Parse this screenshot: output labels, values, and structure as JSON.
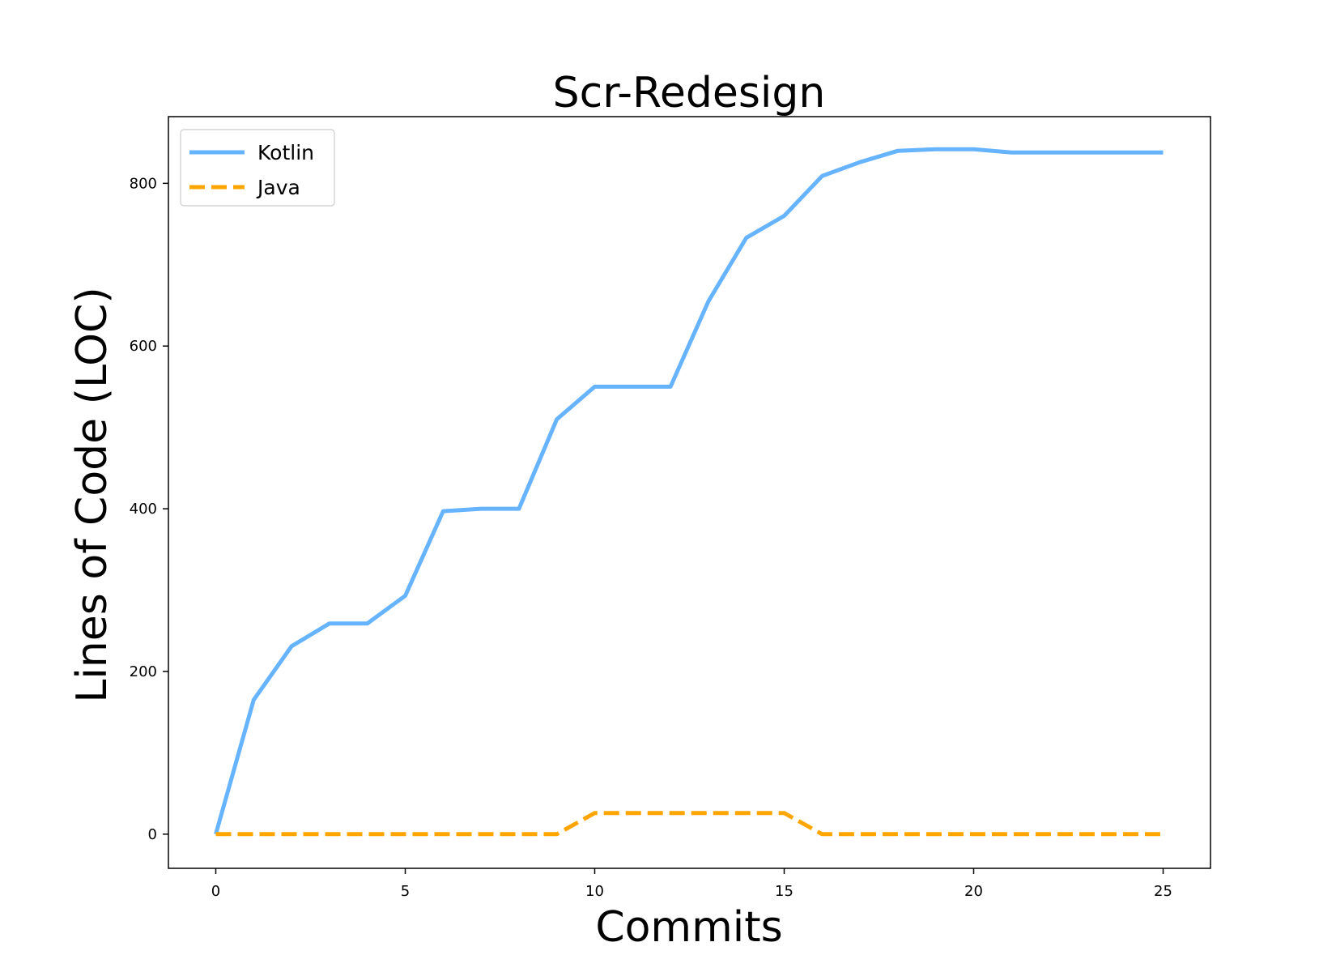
{
  "chart_data": {
    "type": "line",
    "title": "Scr-Redesign",
    "xlabel": "Commits",
    "ylabel": "Lines of Code (LOC)",
    "xlim": [
      -1.25,
      26.25
    ],
    "ylim": [
      -42,
      882
    ],
    "xticks": [
      0,
      5,
      10,
      15,
      20,
      25
    ],
    "yticks": [
      0,
      200,
      400,
      600,
      800
    ],
    "x": [
      0,
      1,
      2,
      3,
      4,
      5,
      6,
      7,
      8,
      9,
      10,
      11,
      12,
      13,
      14,
      15,
      16,
      17,
      18,
      19,
      20,
      21,
      22,
      23,
      24,
      25
    ],
    "series": [
      {
        "name": "Kotlin",
        "color": "#66b3ff",
        "style": "solid",
        "values": [
          0,
          165,
          231,
          259,
          259,
          293,
          397,
          400,
          400,
          510,
          550,
          550,
          550,
          655,
          733,
          760,
          809,
          826,
          840,
          842,
          842,
          838,
          838,
          838,
          838,
          838
        ]
      },
      {
        "name": "Java",
        "color": "#ffa500",
        "style": "dashed",
        "values": [
          0,
          0,
          0,
          0,
          0,
          0,
          0,
          0,
          0,
          0,
          26,
          26,
          26,
          26,
          26,
          26,
          0,
          0,
          0,
          0,
          0,
          0,
          0,
          0,
          0,
          0
        ]
      }
    ],
    "legend_position": "top-left",
    "grid": false
  }
}
